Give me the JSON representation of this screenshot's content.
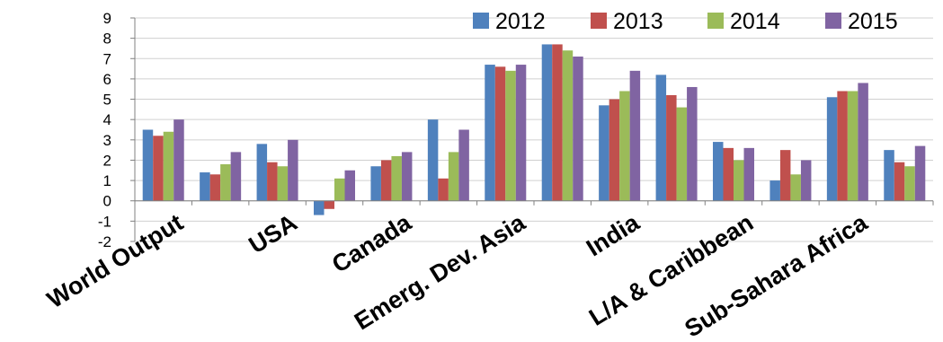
{
  "chart_data": {
    "type": "bar",
    "title": "",
    "xlabel": "",
    "ylabel": "",
    "ylim": [
      -2,
      9
    ],
    "yticks": [
      -2,
      -1,
      0,
      1,
      2,
      3,
      4,
      5,
      6,
      7,
      8,
      9
    ],
    "grid": true,
    "legend_position": "top-right",
    "categories": [
      "World Output",
      "",
      "USA",
      "",
      "Canada",
      "",
      "Emerg. Dev. Asia",
      "",
      "India",
      "",
      "L/A & Caribbean",
      "",
      "Sub-Sahara Africa",
      ""
    ],
    "series": [
      {
        "name": "2012",
        "color": "#4F81BD",
        "values": [
          3.5,
          1.4,
          2.8,
          -0.7,
          1.7,
          4.0,
          6.7,
          7.7,
          4.7,
          6.2,
          2.9,
          1.0,
          5.1,
          2.5
        ]
      },
      {
        "name": "2013",
        "color": "#C0504D",
        "values": [
          3.2,
          1.3,
          1.9,
          -0.4,
          2.0,
          1.1,
          6.6,
          7.7,
          5.0,
          5.2,
          2.6,
          2.5,
          5.4,
          1.9
        ]
      },
      {
        "name": "2014",
        "color": "#9BBB59",
        "values": [
          3.4,
          1.8,
          1.7,
          1.1,
          2.2,
          2.4,
          6.4,
          7.4,
          5.4,
          4.6,
          2.0,
          1.3,
          5.4,
          1.7
        ]
      },
      {
        "name": "2015",
        "color": "#8064A2",
        "values": [
          4.0,
          2.4,
          3.0,
          1.5,
          2.4,
          3.5,
          6.7,
          7.1,
          6.4,
          5.6,
          2.6,
          2.0,
          5.8,
          2.7
        ]
      }
    ]
  }
}
